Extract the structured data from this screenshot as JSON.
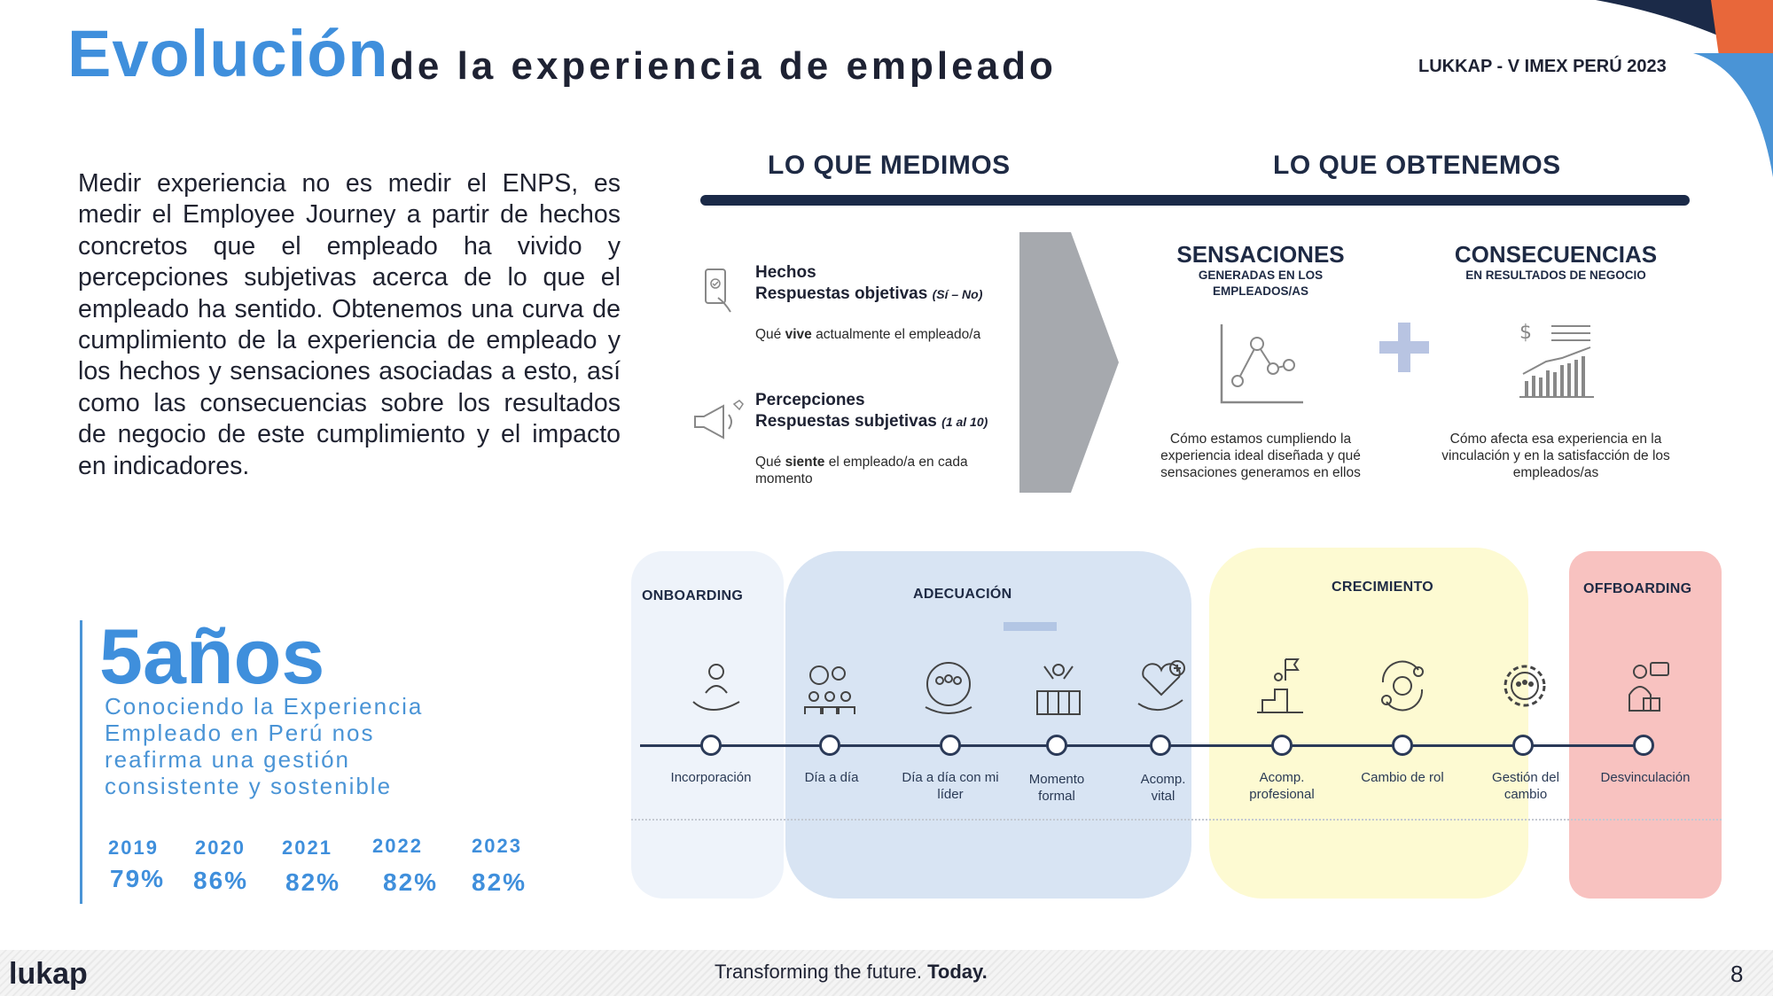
{
  "header": {
    "title_main": "Evolución",
    "title_sub": "de la  experiencia de empleado",
    "event": "LUKKAP - V IMEX PERÚ 2023"
  },
  "intro": {
    "paragraph": "Medir experiencia no es medir el ENPS, es medir el Employee Journey a partir de hechos concretos que el empleado ha vivido y percepciones subjetivas acerca de lo que el empleado ha sentido. Obtenemos una curva de cumplimiento de la experiencia de empleado y los hechos y sensaciones asociadas a esto, así como las consecuencias sobre los resultados de negocio de este cumplimiento y el impacto en indicadores."
  },
  "measure": {
    "heading_left": "LO QUE MEDIMOS",
    "heading_right": "LO QUE OBTENEMOS",
    "hechos": {
      "title": "Hechos",
      "subtitle": "Respuestas objetivas",
      "note": "(Sí – No)",
      "desc_pre": "Qué ",
      "desc_bold": "vive",
      "desc_post": " actualmente el empleado/a"
    },
    "percepciones": {
      "title": "Percepciones",
      "subtitle": "Respuestas subjetivas",
      "note": "(1 al 10)",
      "desc_pre": "Qué ",
      "desc_bold": "siente",
      "desc_post": " el empleado/a en cada momento"
    },
    "sensaciones": {
      "title": "SENSACIONES",
      "subtitle": "GENERADAS EN LOS EMPLEADOS/AS",
      "desc": "Cómo estamos cumpliendo la experiencia ideal diseñada y qué sensaciones generamos en ellos"
    },
    "consecuencias": {
      "title": "CONSECUENCIAS",
      "subtitle": "EN RESULTADOS DE NEGOCIO",
      "desc": "Cómo afecta esa experiencia en la vinculación y en la satisfacción de los empleados/as"
    },
    "plus_icon": "plus-icon"
  },
  "years_block": {
    "big": "5años",
    "sub": "Conociendo la Experiencia Empleado en Perú nos reafirma una gestión consistente y sostenible",
    "years": [
      "2019",
      "2020",
      "2021",
      "2022",
      "2023"
    ],
    "values": [
      "79%",
      "86%",
      "82%",
      "82%",
      "82%"
    ]
  },
  "journey": {
    "phases": [
      "ONBOARDING",
      "ADECUACIÓN",
      "CRECIMIENTO",
      "OFFBOARDING"
    ],
    "stages": [
      {
        "label": "Incorporación",
        "icon": "hand-person-icon"
      },
      {
        "label": "Día a día",
        "icon": "team-gears-icon"
      },
      {
        "label": "Día a día con mi líder",
        "icon": "leader-group-icon"
      },
      {
        "label": "Momento formal",
        "icon": "celebration-group-icon"
      },
      {
        "label": "Acomp. vital",
        "icon": "heart-hand-icon"
      },
      {
        "label": "Acomp. profesional",
        "icon": "flag-climb-icon"
      },
      {
        "label": "Cambio de rol",
        "icon": "role-change-icon"
      },
      {
        "label": "Gestión del cambio",
        "icon": "gear-people-icon"
      },
      {
        "label": "Desvinculación",
        "icon": "exit-person-icon"
      }
    ],
    "colors": {
      "onboarding": "#eef3fa",
      "adecuacion": "#d8e4f3",
      "crecimiento": "#fdfad2",
      "offboarding": "#f8c2c0"
    }
  },
  "footer": {
    "logo": "lukap",
    "tagline_pre": "Transforming the future. ",
    "tagline_bold": "Today.",
    "page": "8"
  }
}
